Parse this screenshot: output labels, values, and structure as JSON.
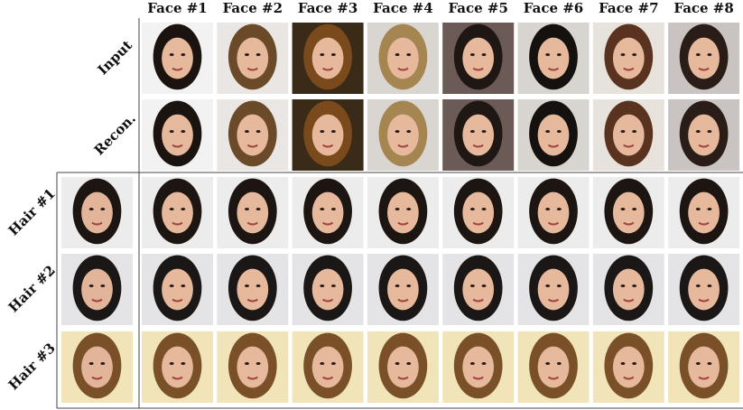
{
  "columns": [
    "Face #1",
    "Face #2",
    "Face #3",
    "Face #4",
    "Face #5",
    "Face #6",
    "Face #7",
    "Face #8"
  ],
  "rows": [
    "Input",
    "Recon.",
    "Hair #1",
    "Hair #2",
    "Hair #3"
  ]
}
